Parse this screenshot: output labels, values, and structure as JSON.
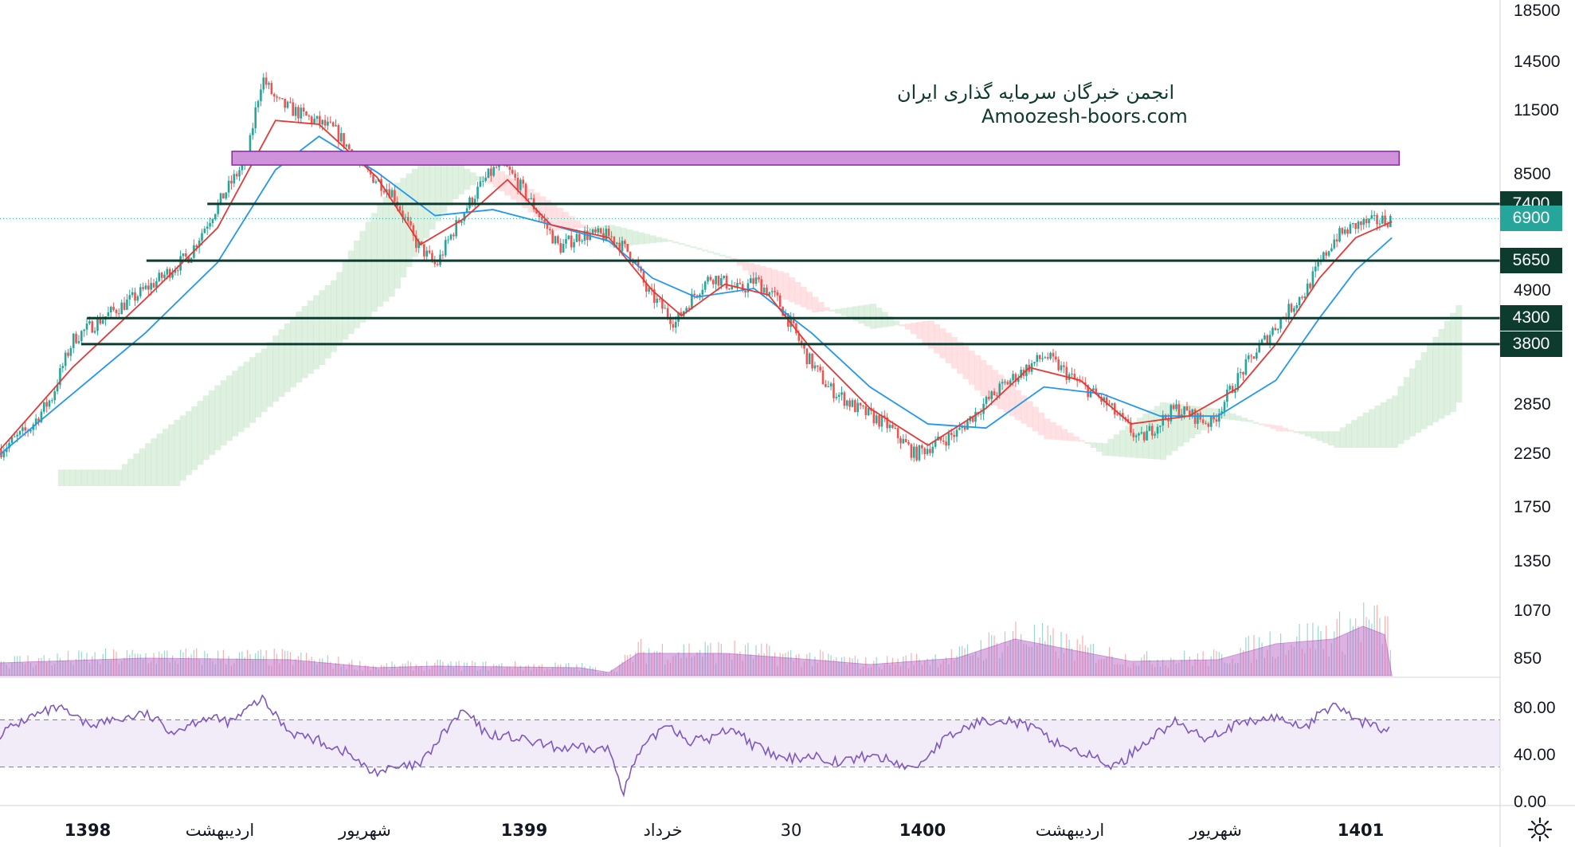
{
  "watermark": {
    "line1": "انجمن خبرگان سرمایه گذاری ایران",
    "line2": "Amoozesh-boors.com"
  },
  "colors": {
    "bull": "#26a69a",
    "bear": "#ef5350",
    "ema_fast": "#e53935",
    "ema_slow": "#2196f3",
    "level_line": "#0d3b2e",
    "zone": "#ce93d8",
    "volume_area": "#ba68c8",
    "rsi": "#7e57c2",
    "cloud_green": "#c8e6c9",
    "cloud_red": "#ffcdd2",
    "current_price_tag": "#26a69a"
  },
  "price_axis": {
    "scale": "log",
    "labels": [
      "18500",
      "14500",
      "11500",
      "8500",
      "6900",
      "4900",
      "3800",
      "2850",
      "2250",
      "1750",
      "1350",
      "1070",
      "850"
    ]
  },
  "rsi_axis": {
    "labels": [
      "80.00",
      "40.00",
      "0.00"
    ]
  },
  "time_axis": {
    "labels": [
      {
        "text": "1398",
        "bold": true
      },
      {
        "text": "اردیبهشت",
        "bold": false
      },
      {
        "text": "شهریور",
        "bold": false
      },
      {
        "text": "1399",
        "bold": true
      },
      {
        "text": "خرداد",
        "bold": false
      },
      {
        "text": "30",
        "bold": false
      },
      {
        "text": "1400",
        "bold": true
      },
      {
        "text": "اردیبهشت",
        "bold": false
      },
      {
        "text": "شهریور",
        "bold": false
      },
      {
        "text": "1401",
        "bold": true
      }
    ]
  },
  "levels": [
    "7400",
    "5650",
    "4300",
    "3800"
  ],
  "current_price": "6900",
  "settings_icon": "gear-icon",
  "chart_data": {
    "type": "candlestick",
    "y_scale": "log",
    "ylim": [
      780,
      19500
    ],
    "x": [
      "1398",
      "اردیبهشت",
      "شهریور",
      "1399",
      "خرداد",
      "30",
      "1400",
      "اردیبهشت",
      "شهریور",
      "1401"
    ],
    "close_path": [
      [
        0,
        2300
      ],
      [
        0.02,
        2550
      ],
      [
        0.035,
        2950
      ],
      [
        0.05,
        3900
      ],
      [
        0.07,
        4300
      ],
      [
        0.09,
        4700
      ],
      [
        0.11,
        5200
      ],
      [
        0.13,
        5800
      ],
      [
        0.15,
        7400
      ],
      [
        0.17,
        9200
      ],
      [
        0.18,
        13500
      ],
      [
        0.19,
        12000
      ],
      [
        0.21,
        11200
      ],
      [
        0.23,
        10500
      ],
      [
        0.25,
        8700
      ],
      [
        0.27,
        7800
      ],
      [
        0.285,
        6200
      ],
      [
        0.3,
        5500
      ],
      [
        0.32,
        7200
      ],
      [
        0.335,
        8400
      ],
      [
        0.345,
        9000
      ],
      [
        0.36,
        7900
      ],
      [
        0.375,
        6700
      ],
      [
        0.385,
        6000
      ],
      [
        0.4,
        6400
      ],
      [
        0.42,
        6350
      ],
      [
        0.435,
        5800
      ],
      [
        0.445,
        4900
      ],
      [
        0.465,
        4200
      ],
      [
        0.48,
        4900
      ],
      [
        0.49,
        5250
      ],
      [
        0.51,
        4900
      ],
      [
        0.52,
        5150
      ],
      [
        0.535,
        4700
      ],
      [
        0.555,
        3600
      ],
      [
        0.57,
        3100
      ],
      [
        0.59,
        2800
      ],
      [
        0.61,
        2600
      ],
      [
        0.63,
        2250
      ],
      [
        0.66,
        2500
      ],
      [
        0.69,
        3100
      ],
      [
        0.72,
        3600
      ],
      [
        0.74,
        3200
      ],
      [
        0.76,
        2900
      ],
      [
        0.785,
        2400
      ],
      [
        0.81,
        2800
      ],
      [
        0.835,
        2600
      ],
      [
        0.855,
        3300
      ],
      [
        0.875,
        4000
      ],
      [
        0.9,
        4900
      ],
      [
        0.92,
        6300
      ],
      [
        0.935,
        6700
      ],
      [
        0.96,
        6900
      ]
    ],
    "ema_fast_path": [
      [
        0,
        2300
      ],
      [
        0.05,
        3400
      ],
      [
        0.1,
        4700
      ],
      [
        0.15,
        6600
      ],
      [
        0.19,
        11000
      ],
      [
        0.22,
        10800
      ],
      [
        0.26,
        8400
      ],
      [
        0.29,
        6100
      ],
      [
        0.32,
        6900
      ],
      [
        0.35,
        8300
      ],
      [
        0.38,
        6700
      ],
      [
        0.42,
        6300
      ],
      [
        0.45,
        4900
      ],
      [
        0.47,
        4350
      ],
      [
        0.5,
        5050
      ],
      [
        0.53,
        4800
      ],
      [
        0.56,
        3700
      ],
      [
        0.6,
        2800
      ],
      [
        0.64,
        2350
      ],
      [
        0.68,
        2800
      ],
      [
        0.71,
        3400
      ],
      [
        0.745,
        3200
      ],
      [
        0.78,
        2600
      ],
      [
        0.82,
        2700
      ],
      [
        0.855,
        3100
      ],
      [
        0.88,
        3800
      ],
      [
        0.91,
        5200
      ],
      [
        0.935,
        6300
      ],
      [
        0.96,
        6800
      ]
    ],
    "ema_slow_path": [
      [
        0,
        2250
      ],
      [
        0.05,
        3000
      ],
      [
        0.1,
        4000
      ],
      [
        0.15,
        5600
      ],
      [
        0.19,
        8700
      ],
      [
        0.22,
        10200
      ],
      [
        0.26,
        8600
      ],
      [
        0.3,
        7000
      ],
      [
        0.34,
        7200
      ],
      [
        0.38,
        6700
      ],
      [
        0.42,
        6200
      ],
      [
        0.45,
        5200
      ],
      [
        0.48,
        4750
      ],
      [
        0.52,
        4950
      ],
      [
        0.56,
        4000
      ],
      [
        0.6,
        3100
      ],
      [
        0.64,
        2600
      ],
      [
        0.68,
        2550
      ],
      [
        0.72,
        3100
      ],
      [
        0.76,
        3000
      ],
      [
        0.8,
        2700
      ],
      [
        0.84,
        2700
      ],
      [
        0.88,
        3200
      ],
      [
        0.91,
        4300
      ],
      [
        0.935,
        5400
      ],
      [
        0.96,
        6300
      ]
    ],
    "rsi_path": [
      [
        0,
        58
      ],
      [
        0.02,
        72
      ],
      [
        0.04,
        80
      ],
      [
        0.06,
        66
      ],
      [
        0.08,
        70
      ],
      [
        0.1,
        75
      ],
      [
        0.12,
        60
      ],
      [
        0.14,
        72
      ],
      [
        0.16,
        68
      ],
      [
        0.18,
        88
      ],
      [
        0.2,
        60
      ],
      [
        0.22,
        52
      ],
      [
        0.24,
        42
      ],
      [
        0.255,
        26
      ],
      [
        0.27,
        28
      ],
      [
        0.29,
        32
      ],
      [
        0.31,
        65
      ],
      [
        0.32,
        78
      ],
      [
        0.335,
        58
      ],
      [
        0.35,
        56
      ],
      [
        0.37,
        50
      ],
      [
        0.385,
        46
      ],
      [
        0.42,
        45
      ],
      [
        0.43,
        10
      ],
      [
        0.44,
        40
      ],
      [
        0.46,
        68
      ],
      [
        0.475,
        52
      ],
      [
        0.49,
        54
      ],
      [
        0.505,
        64
      ],
      [
        0.52,
        48
      ],
      [
        0.54,
        36
      ],
      [
        0.56,
        40
      ],
      [
        0.58,
        34
      ],
      [
        0.6,
        40
      ],
      [
        0.615,
        35
      ],
      [
        0.63,
        28
      ],
      [
        0.65,
        52
      ],
      [
        0.67,
        66
      ],
      [
        0.69,
        72
      ],
      [
        0.71,
        64
      ],
      [
        0.73,
        50
      ],
      [
        0.75,
        40
      ],
      [
        0.77,
        30
      ],
      [
        0.79,
        52
      ],
      [
        0.81,
        68
      ],
      [
        0.83,
        55
      ],
      [
        0.85,
        64
      ],
      [
        0.87,
        70
      ],
      [
        0.88,
        72
      ],
      [
        0.9,
        64
      ],
      [
        0.92,
        84
      ],
      [
        0.935,
        70
      ],
      [
        0.96,
        60
      ]
    ],
    "levels": [
      7400,
      5650,
      4300,
      3800
    ],
    "resistance_zone": [
      8900,
      9500
    ],
    "current_price": 6900,
    "rsi_bands": [
      70,
      30
    ],
    "rsi_ylim": [
      0,
      100
    ]
  }
}
